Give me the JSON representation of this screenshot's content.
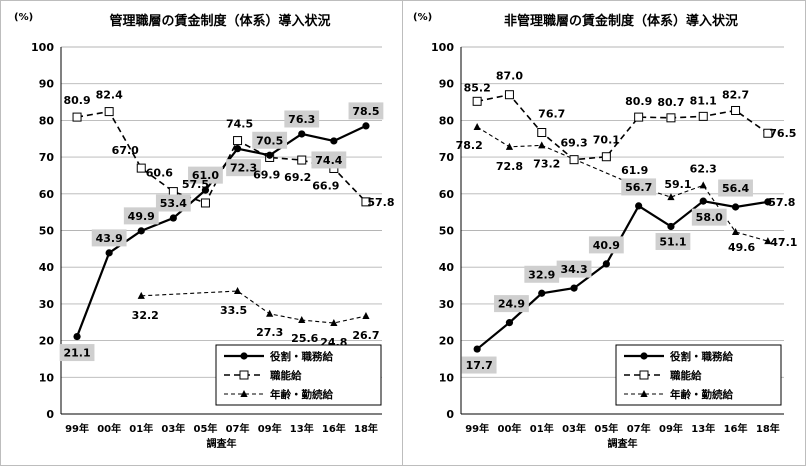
{
  "chart_data": [
    {
      "type": "line",
      "title": "管理職層の賃金制度（体系）導入状況",
      "unit_label": "(%)",
      "xlabel": "調査年",
      "ylim": [
        0,
        100
      ],
      "yticks": [
        "0",
        "10",
        "20",
        "30",
        "40",
        "50",
        "60",
        "70",
        "80",
        "90",
        "100"
      ],
      "categories": [
        "99年",
        "00年",
        "01年",
        "03年",
        "05年",
        "07年",
        "09年",
        "13年",
        "16年",
        "18年"
      ],
      "legend_position": "bottom-right",
      "series": [
        {
          "name": "役割・職務給",
          "style": "solid",
          "marker": "circle",
          "values": [
            21.1,
            43.9,
            49.9,
            53.4,
            61.0,
            72.3,
            70.5,
            76.3,
            74.4,
            78.5
          ],
          "labels": [
            "21.1",
            "43.9",
            "49.9",
            "53.4",
            "61.0",
            "72.3",
            "70.5",
            "76.3",
            "74.4",
            "78.5"
          ]
        },
        {
          "name": "職能給",
          "style": "dashed",
          "marker": "square",
          "values": [
            80.9,
            82.4,
            67.0,
            60.6,
            57.5,
            74.5,
            69.9,
            69.2,
            66.9,
            57.8
          ],
          "labels": [
            "80.9",
            "82.4",
            "67.0",
            "60.6",
            "57.5",
            "74.5",
            "69.9",
            "69.2",
            "66.9",
            "57.8"
          ]
        },
        {
          "name": "年齢・勤続給",
          "style": "dotted",
          "marker": "triangle",
          "values": [
            null,
            null,
            32.2,
            null,
            null,
            33.5,
            27.3,
            25.6,
            24.8,
            26.7
          ],
          "labels": [
            null,
            null,
            "32.2",
            null,
            null,
            "33.5",
            "27.3",
            "25.6",
            "24.8",
            "26.7"
          ]
        }
      ]
    },
    {
      "type": "line",
      "title": "非管理職層の賃金制度（体系）導入状況",
      "unit_label": "(%)",
      "xlabel": "調査年",
      "ylim": [
        0,
        100
      ],
      "yticks": [
        "0",
        "10",
        "20",
        "30",
        "40",
        "50",
        "60",
        "70",
        "80",
        "90",
        "100"
      ],
      "categories": [
        "99年",
        "00年",
        "01年",
        "03年",
        "05年",
        "07年",
        "09年",
        "13年",
        "16年",
        "18年"
      ],
      "legend_position": "bottom-right",
      "series": [
        {
          "name": "役割・職務給",
          "style": "solid",
          "marker": "circle",
          "values": [
            17.7,
            24.9,
            32.9,
            34.3,
            40.9,
            56.7,
            51.1,
            58.0,
            56.4,
            57.8
          ],
          "labels": [
            "17.7",
            "24.9",
            "32.9",
            "34.3",
            "40.9",
            "56.7",
            "51.1",
            "58.0",
            "56.4",
            "57.8"
          ]
        },
        {
          "name": "職能給",
          "style": "dashed",
          "marker": "square",
          "values": [
            85.2,
            87.0,
            76.7,
            69.3,
            70.1,
            80.9,
            80.7,
            81.1,
            82.7,
            76.5
          ],
          "labels": [
            "85.2",
            "87.0",
            "76.7",
            "69.3",
            "70.1",
            "80.9",
            "80.7",
            "81.1",
            "82.7",
            "76.5"
          ]
        },
        {
          "name": "年齢・勤続給",
          "style": "dotted",
          "marker": "triangle",
          "values": [
            78.2,
            72.8,
            73.2,
            null,
            null,
            61.9,
            59.1,
            62.3,
            49.6,
            47.1
          ],
          "labels": [
            "78.2",
            "72.8",
            "73.2",
            null,
            null,
            "61.9",
            "59.1",
            "62.3",
            "49.6",
            "47.1"
          ]
        }
      ]
    }
  ]
}
